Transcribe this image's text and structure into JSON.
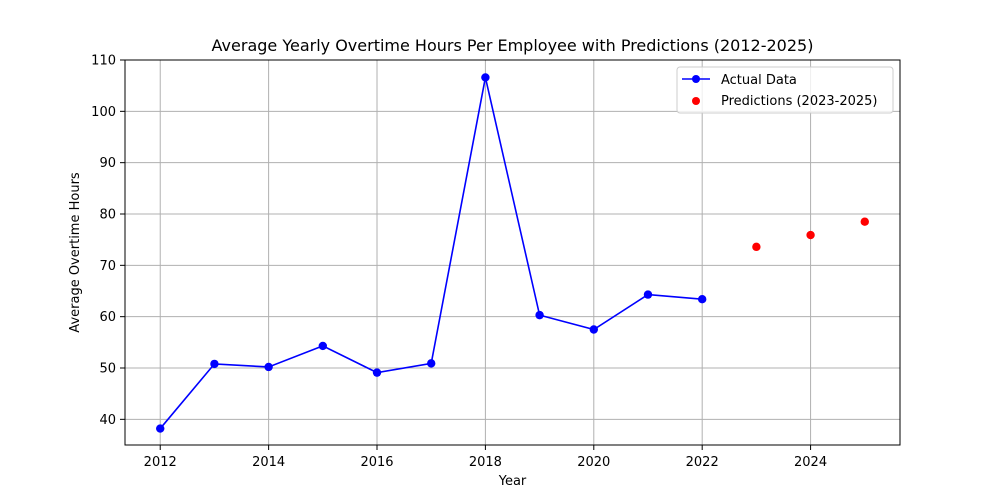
{
  "chart_data": {
    "type": "line",
    "title": "Average Yearly Overtime Hours Per Employee with Predictions (2012-2025)",
    "xlabel": "Year",
    "ylabel": "Average Overtime Hours",
    "xlim": [
      2011.35,
      2025.65
    ],
    "ylim": [
      35,
      110
    ],
    "xticks": [
      2012,
      2014,
      2016,
      2018,
      2020,
      2022,
      2024
    ],
    "yticks": [
      40,
      50,
      60,
      70,
      80,
      90,
      100,
      110
    ],
    "grid": true,
    "legend_position": "top-right",
    "series": [
      {
        "name": "Actual Data",
        "style": "line-with-markers",
        "color": "#0000ff",
        "x": [
          2012,
          2013,
          2014,
          2015,
          2016,
          2017,
          2018,
          2019,
          2020,
          2021,
          2022
        ],
        "values": [
          38.2,
          50.8,
          50.2,
          54.3,
          49.1,
          50.9,
          106.6,
          60.3,
          57.5,
          64.3,
          63.4
        ]
      },
      {
        "name": "Predictions (2023-2025)",
        "style": "scatter",
        "color": "#ff0000",
        "x": [
          2023,
          2024,
          2025
        ],
        "values": [
          73.6,
          75.9,
          78.5
        ]
      }
    ]
  }
}
